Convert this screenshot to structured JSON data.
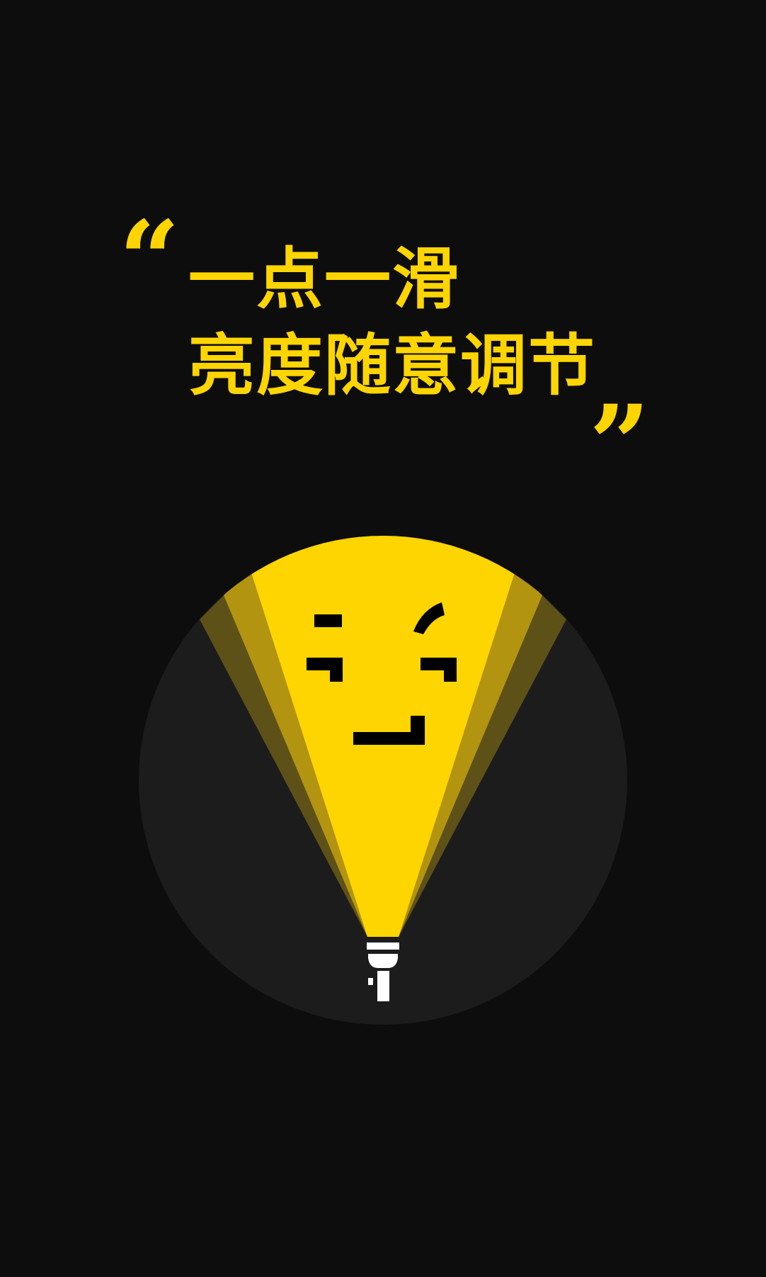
{
  "headline": {
    "open_quote": "“",
    "line1": "一点一滑",
    "line2": "亮度随意调节",
    "close_quote": "”"
  },
  "illustration": {
    "subject": "flashlight-with-face",
    "icons": [
      "flashlight-icon",
      "smiley-face-icon"
    ]
  },
  "colors": {
    "background": "#0d0d0d",
    "accent": "#ffd500",
    "circle": "#1c1c1c",
    "beam_mid": "#b39411",
    "beam_outer": "#5e5118",
    "face": "#000000",
    "flashlight": "#ffffff"
  }
}
